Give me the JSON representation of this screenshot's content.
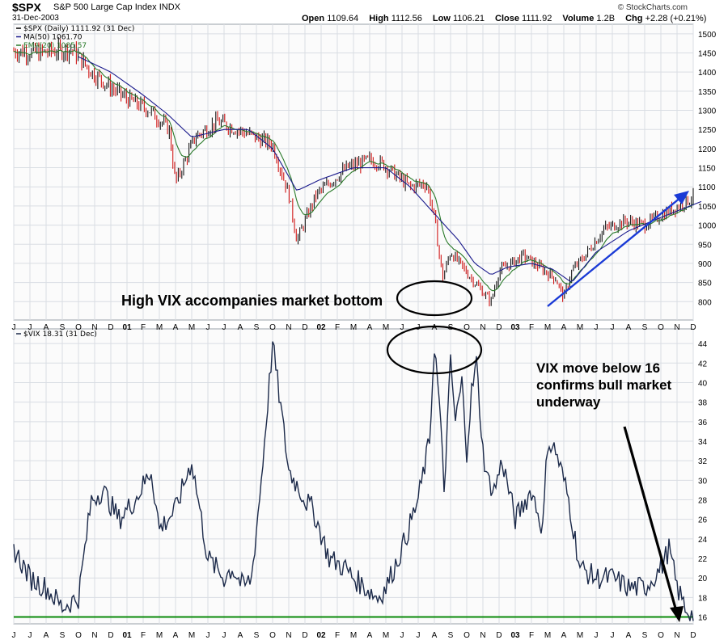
{
  "header": {
    "symbol": "$SPX",
    "description": "S&P 500 Large Cap Index",
    "exchange": "INDX",
    "date": "31-Dec-2003",
    "brand": "© StockCharts.com",
    "open_label": "Open",
    "open": "1109.64",
    "high_label": "High",
    "high": "1112.56",
    "low_label": "Low",
    "low": "1106.21",
    "close_label": "Close",
    "close": "1111.92",
    "volume_label": "Volume",
    "volume": "1.2B",
    "chg_label": "Chg",
    "chg": "+2.28 (+0.21%)"
  },
  "colors": {
    "price_up": "#000000",
    "price_down": "#cc0000",
    "ma50": "#1a1a8c",
    "ema20": "#2a7a2a",
    "vix": "#1c2a4a",
    "baseline": "#0a8a0a",
    "arrow_blue": "#1a3ad6",
    "grid": "#d9dde3",
    "panel_bg": "#fbfbfb"
  },
  "annotations": {
    "bottom": "High VIX accompanies market bottom",
    "vix_line1": "VIX move below 16",
    "vix_line2": "confirms bull market",
    "vix_line3": "underway"
  },
  "chart_data": [
    {
      "type": "line",
      "panel": "price",
      "legend": [
        "$SPX (Daily) 1111.92 (31 Dec)",
        "MA(50) 1061.70",
        "EMA(20) 1085.57"
      ],
      "y_ticks": [
        800,
        850,
        900,
        950,
        1000,
        1050,
        1100,
        1150,
        1200,
        1250,
        1300,
        1350,
        1400,
        1450,
        1500
      ],
      "ylim": [
        752,
        1525
      ],
      "x_months": [
        "J",
        "J",
        "A",
        "S",
        "O",
        "N",
        "D",
        "01",
        "F",
        "M",
        "A",
        "M",
        "J",
        "J",
        "A",
        "S",
        "O",
        "N",
        "D",
        "02",
        "F",
        "M",
        "A",
        "M",
        "J",
        "J",
        "A",
        "S",
        "O",
        "N",
        "D",
        "03",
        "F",
        "M",
        "A",
        "M",
        "J",
        "J",
        "A",
        "S",
        "O",
        "N",
        "D"
      ],
      "series": [
        {
          "name": "$SPX",
          "month_index": [
            0,
            1.6,
            3.6,
            4.8,
            6,
            7,
            8.4,
            9.6,
            10,
            11.2,
            12.6,
            14.4,
            16,
            17,
            17.5,
            18.7,
            20.6,
            22,
            22.8,
            24.5,
            25.5,
            26,
            26.5,
            27,
            28.3,
            29.5,
            30,
            31.5,
            33.5,
            34,
            34.5,
            35.3,
            36.5,
            37.8,
            39,
            40.2,
            41.5,
            42.3,
            42.5
          ],
          "values": [
            1455,
            1450,
            1460,
            1400,
            1360,
            1330,
            1300,
            1250,
            1110,
            1230,
            1270,
            1240,
            1210,
            1080,
            960,
            1080,
            1150,
            1170,
            1160,
            1100,
            1110,
            1020,
            860,
            930,
            860,
            800,
            880,
            920,
            860,
            810,
            880,
            920,
            990,
            1010,
            1000,
            1030,
            1060,
            1080,
            1111.92
          ]
        },
        {
          "name": "MA(50)",
          "month_index": [
            4,
            6,
            8,
            9.5,
            11,
            13,
            14.5,
            16,
            17.5,
            19,
            21,
            23,
            24.5,
            26,
            27.5,
            28.5,
            29.5,
            30.5,
            32,
            33.3,
            34.5,
            36,
            38,
            40,
            42.5
          ],
          "values": [
            1440,
            1400,
            1340,
            1290,
            1230,
            1250,
            1250,
            1200,
            1090,
            1120,
            1150,
            1150,
            1100,
            1030,
            960,
            900,
            870,
            890,
            900,
            885,
            850,
            930,
            985,
            1020,
            1061.7
          ]
        }
      ]
    },
    {
      "type": "line",
      "panel": "vix",
      "legend": [
        "$VIX 18.31 (31 Dec)"
      ],
      "y_ticks": [
        16,
        18,
        20,
        22,
        24,
        26,
        28,
        30,
        32,
        34,
        36,
        38,
        40,
        42,
        44
      ],
      "ylim": [
        15.3,
        45.5
      ],
      "baseline": 16,
      "series": [
        {
          "name": "$VIX",
          "month_index": [
            0,
            1,
            2,
            3,
            4,
            4.8,
            5.5,
            6.5,
            7.5,
            8.5,
            9,
            10,
            11,
            12,
            13,
            13.5,
            14.2,
            14.7,
            15.3,
            16,
            17,
            17.7,
            18,
            18.5,
            19.5,
            20.5,
            21,
            22.5,
            23,
            24,
            25,
            25.7,
            26,
            26.3,
            26.6,
            27,
            27.3,
            27.7,
            28,
            28.3,
            28.6,
            29,
            29.3,
            29.7,
            30.2,
            31,
            32,
            32.7,
            33,
            33.5,
            34,
            34.3,
            35,
            36,
            37,
            38,
            39,
            40,
            40.5,
            41,
            41.5,
            42,
            42.3,
            42.5
          ],
          "values": [
            23,
            20,
            19,
            17,
            18,
            28,
            29,
            26,
            28,
            31,
            25,
            27,
            32,
            22,
            20,
            21,
            19,
            20,
            30,
            44,
            31,
            29,
            28,
            27,
            22,
            21,
            20,
            18,
            19,
            23,
            28,
            34,
            44,
            38,
            29,
            42,
            36,
            40,
            33,
            39,
            42,
            33,
            30,
            29,
            32,
            26,
            29,
            25,
            34,
            33,
            30,
            28,
            21,
            20,
            20,
            19,
            19,
            21,
            23,
            19,
            17,
            16,
            17,
            18.31
          ]
        }
      ]
    }
  ]
}
